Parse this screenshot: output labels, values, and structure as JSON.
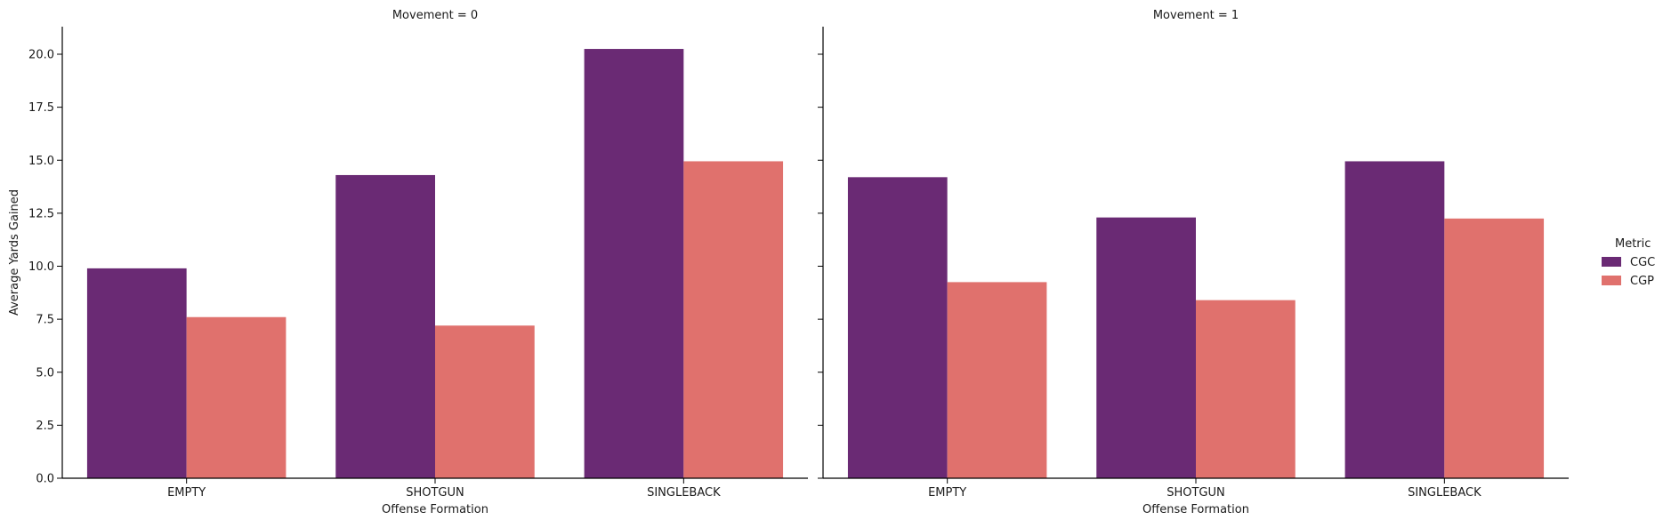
{
  "chart_data": [
    {
      "type": "bar",
      "title": "Movement = 0",
      "xlabel": "Offense Formation",
      "ylabel": "Average Yards Gained",
      "categories": [
        "EMPTY",
        "SHOTGUN",
        "SINGLEBACK"
      ],
      "series": [
        {
          "name": "CGC",
          "values": [
            9.9,
            14.3,
            20.25
          ]
        },
        {
          "name": "CGP",
          "values": [
            7.6,
            7.2,
            14.95
          ]
        }
      ],
      "ylim": [
        0,
        21.3
      ],
      "yticks": [
        "0.0",
        "2.5",
        "5.0",
        "7.5",
        "10.0",
        "12.5",
        "15.0",
        "17.5",
        "20.0"
      ],
      "grid": false
    },
    {
      "type": "bar",
      "title": "Movement = 1",
      "xlabel": "Offense Formation",
      "ylabel": "",
      "categories": [
        "EMPTY",
        "SHOTGUN",
        "SINGLEBACK"
      ],
      "series": [
        {
          "name": "CGC",
          "values": [
            14.2,
            12.3,
            14.95
          ]
        },
        {
          "name": "CGP",
          "values": [
            9.25,
            8.4,
            12.25
          ]
        }
      ],
      "ylim": [
        0,
        21.3
      ],
      "yticks": [
        "0.0",
        "2.5",
        "5.0",
        "7.5",
        "10.0",
        "12.5",
        "15.0",
        "17.5",
        "20.0"
      ],
      "grid": false
    }
  ],
  "legend": {
    "title": "Metric",
    "placement": "right",
    "entries": [
      {
        "label": "CGC",
        "color": "#6a2a74"
      },
      {
        "label": "CGP",
        "color": "#e0716d"
      }
    ]
  },
  "colors": {
    "CGC": "#6a2a74",
    "CGP": "#e0716d",
    "axis": "#000000"
  }
}
